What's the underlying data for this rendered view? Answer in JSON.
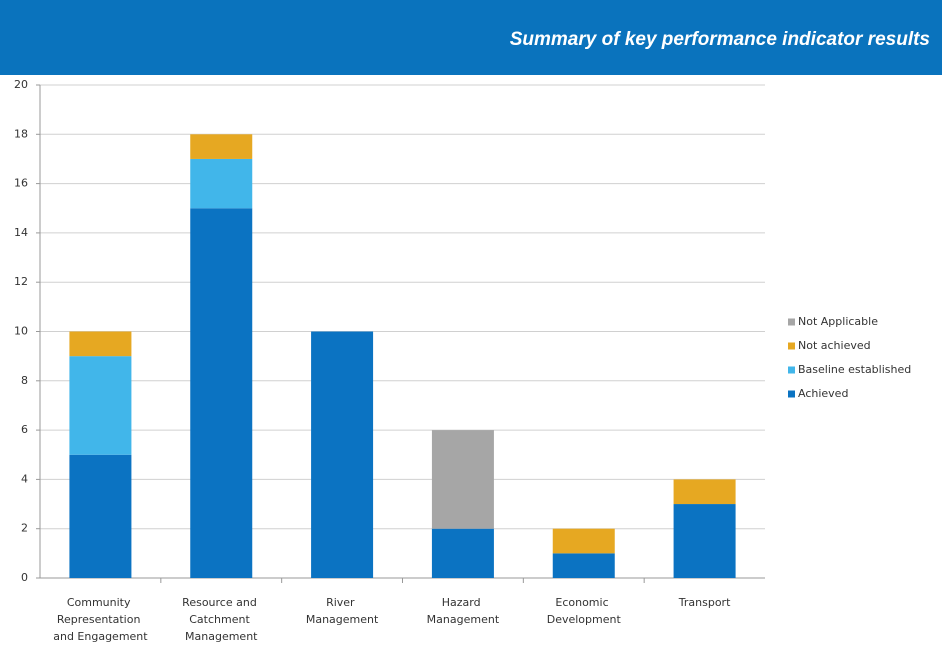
{
  "chart_data": {
    "type": "stacked_bar",
    "title": "Summary of key performance indicator results",
    "categories": [
      "Community Representation and Engagement",
      "Resource and Catchment Management",
      "River Management",
      "Hazard Management",
      "Economic Development",
      "Transport"
    ],
    "series": [
      {
        "name": "Achieved",
        "color": "#0b73c2",
        "values": [
          5,
          15,
          10,
          2,
          1,
          3
        ]
      },
      {
        "name": "Baseline established",
        "color": "#41b6ea",
        "values": [
          4,
          2,
          0,
          0,
          0,
          0
        ]
      },
      {
        "name": "Not achieved",
        "color": "#e6a822",
        "values": [
          1,
          1,
          0,
          0,
          1,
          1
        ]
      },
      {
        "name": "Not Applicable",
        "color": "#a6a6a6",
        "values": [
          0,
          0,
          0,
          4,
          0,
          0
        ]
      }
    ],
    "ylim": [
      0,
      20
    ],
    "yticks": [
      0,
      2,
      4,
      6,
      8,
      10,
      12,
      14,
      16,
      18,
      20
    ],
    "grid": true,
    "legend": "right"
  }
}
